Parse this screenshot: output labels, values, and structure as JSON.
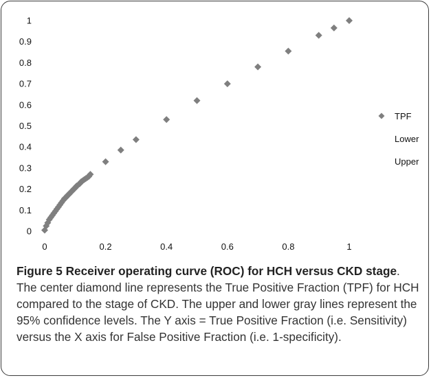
{
  "chart_data": {
    "type": "scatter",
    "title": "",
    "xlabel": "",
    "ylabel": "",
    "xlim": [
      0,
      1.1
    ],
    "ylim": [
      0,
      1
    ],
    "x_ticks": [
      "0",
      "0.2",
      "0.4",
      "0.6",
      "0.8",
      "1"
    ],
    "y_ticks": [
      "0",
      "0.1",
      "0.2",
      "0.3",
      "0.4",
      "0.5",
      "0.6",
      "0.7",
      "0.8",
      "0.9",
      "1"
    ],
    "grid": false,
    "legend_position": "right",
    "marker_color": "#7f7f7f",
    "series": [
      {
        "name": "TPF",
        "marker": "diamond",
        "points": [
          [
            0,
            0.005
          ],
          [
            0.005,
            0.025
          ],
          [
            0.01,
            0.04
          ],
          [
            0.015,
            0.055
          ],
          [
            0.02,
            0.065
          ],
          [
            0.025,
            0.075
          ],
          [
            0.03,
            0.085
          ],
          [
            0.035,
            0.095
          ],
          [
            0.04,
            0.105
          ],
          [
            0.045,
            0.115
          ],
          [
            0.05,
            0.125
          ],
          [
            0.055,
            0.135
          ],
          [
            0.06,
            0.145
          ],
          [
            0.065,
            0.155
          ],
          [
            0.07,
            0.16
          ],
          [
            0.075,
            0.17
          ],
          [
            0.08,
            0.175
          ],
          [
            0.085,
            0.185
          ],
          [
            0.09,
            0.19
          ],
          [
            0.095,
            0.2
          ],
          [
            0.1,
            0.205
          ],
          [
            0.105,
            0.215
          ],
          [
            0.11,
            0.22
          ],
          [
            0.115,
            0.225
          ],
          [
            0.12,
            0.235
          ],
          [
            0.125,
            0.24
          ],
          [
            0.13,
            0.245
          ],
          [
            0.135,
            0.25
          ],
          [
            0.14,
            0.255
          ],
          [
            0.145,
            0.26
          ],
          [
            0.15,
            0.27
          ],
          [
            0.2,
            0.33
          ],
          [
            0.25,
            0.385
          ],
          [
            0.3,
            0.435
          ],
          [
            0.4,
            0.53
          ],
          [
            0.5,
            0.62
          ],
          [
            0.6,
            0.7
          ],
          [
            0.7,
            0.78
          ],
          [
            0.8,
            0.855
          ],
          [
            0.9,
            0.93
          ],
          [
            0.95,
            0.965
          ],
          [
            1,
            1
          ]
        ]
      },
      {
        "name": "Lower",
        "points": []
      },
      {
        "name": "Upper",
        "points": []
      }
    ]
  },
  "caption": {
    "label": "Figure 5 Receiver operating curve (ROC) for HCH versus CKD stage",
    "text": ". The center diamond line represents the True Positive Fraction (TPF) for HCH compared to the stage of CKD. The upper and lower gray lines represent the 95% confidence levels. The Y axis = True Positive Fraction (i.e. Sensitivity) versus the X axis for False Positive Fraction (i.e. 1-specificity)."
  }
}
